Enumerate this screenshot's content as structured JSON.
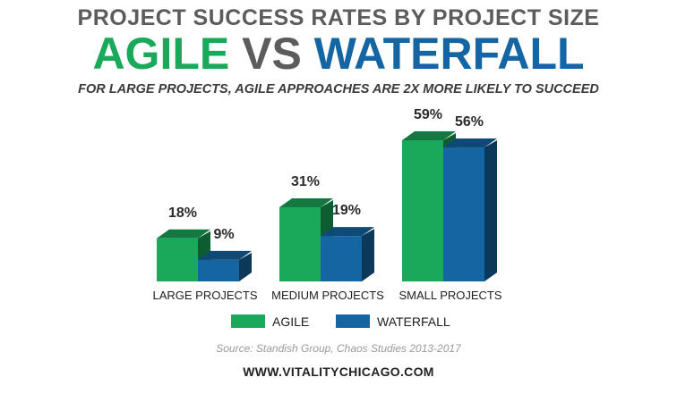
{
  "header": {
    "top_title": "PROJECT SUCCESS RATES BY PROJECT SIZE",
    "main_agile": "AGILE",
    "main_vs": "VS",
    "main_waterfall": "WATERFALL",
    "subtitle": "FOR LARGE PROJECTS, AGILE APPROACHES ARE 2X MORE LIKELY TO SUCCEED"
  },
  "footer": {
    "source": "Source: Standish Group, Chaos Studies 2013-2017",
    "website": "WWW.VITALITYCHICAGO.COM"
  },
  "colors": {
    "agile": "#1aa85a",
    "waterfall": "#1565a2",
    "vs": "#5c5c5c"
  },
  "chart_data": {
    "type": "bar",
    "categories": [
      "LARGE  PROJECTS",
      "MEDIUM PROJECTS",
      "SMALL PROJECTS"
    ],
    "series": [
      {
        "name": "AGILE",
        "values": [
          18,
          31,
          59
        ],
        "labels": [
          "18%",
          "31%",
          "59%"
        ]
      },
      {
        "name": "WATERFALL",
        "values": [
          9,
          19,
          56
        ],
        "labels": [
          "9%",
          "19%",
          "56%"
        ]
      }
    ],
    "ylim": [
      0,
      59
    ],
    "grid": false,
    "legend": "bottom-center"
  }
}
